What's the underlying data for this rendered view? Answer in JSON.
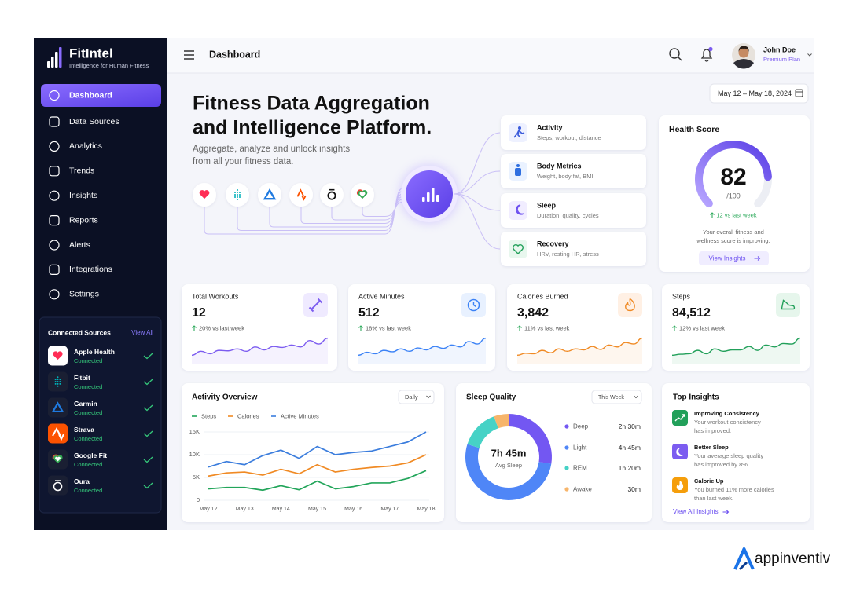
{
  "brand": {
    "name": "FitIntel",
    "tagline": "Intelligence for Human Fitness"
  },
  "nav": [
    "Dashboard",
    "Data Sources",
    "Analytics",
    "Trends",
    "Insights",
    "Reports",
    "Alerts",
    "Integrations",
    "Settings"
  ],
  "connected": {
    "title": "Connected Sources",
    "view_all": "View All",
    "sources": [
      {
        "name": "Apple Health",
        "status": "Connected"
      },
      {
        "name": "Fitbit",
        "status": "Connected"
      },
      {
        "name": "Garmin",
        "status": "Connected"
      },
      {
        "name": "Strava",
        "status": "Connected"
      },
      {
        "name": "Google Fit",
        "status": "Connected"
      },
      {
        "name": "Oura",
        "status": "Connected"
      }
    ]
  },
  "header": {
    "title": "Dashboard",
    "user": "John Doe",
    "plan": "Premium Plan"
  },
  "hero": {
    "title_line1": "Fitness Data Aggregation",
    "title_line2": "and Intelligence Platform.",
    "subtitle_line1": "Aggregate, analyze and unlock insights",
    "subtitle_line2": "from all your fitness data."
  },
  "date_range": "May 12 – May 18, 2024",
  "data_categories": [
    {
      "title": "Activity",
      "desc": "Steps, workout, distance",
      "color": "#3b5bdb",
      "tint": "#eef1ff"
    },
    {
      "title": "Body Metrics",
      "desc": "Weight, body fat, BMI",
      "color": "#2f6fe0",
      "tint": "#eaf2ff"
    },
    {
      "title": "Sleep",
      "desc": "Duration, quality, cycles",
      "color": "#6d4ff0",
      "tint": "#f1edff"
    },
    {
      "title": "Recovery",
      "desc": "HRV, resting HR, stress",
      "color": "#22a05a",
      "tint": "#e8f7ee"
    }
  ],
  "health_score": {
    "title": "Health Score",
    "value": 82,
    "max": 100,
    "max_label": "/100",
    "change": "12 vs last week",
    "note_line1": "Your overall fitness and",
    "note_line2": "wellness score is improving.",
    "link": "View Insights"
  },
  "stats": [
    {
      "title": "Total Workouts",
      "value": "12",
      "change": "20% vs last week",
      "color": "#7c5cf0",
      "tint": "#efeaff"
    },
    {
      "title": "Active Minutes",
      "value": "512",
      "change": "18% vs last week",
      "color": "#3b82f6",
      "tint": "#e8f1ff"
    },
    {
      "title": "Calories Burned",
      "value": "3,842",
      "change": "11% vs last week",
      "color": "#f08a24",
      "tint": "#fff0e4"
    },
    {
      "title": "Steps",
      "value": "84,512",
      "change": "12% vs last week",
      "color": "#22a05a",
      "tint": "#e6f6ec"
    }
  ],
  "chart_data": [
    {
      "type": "line",
      "title": "Activity Overview",
      "period": "Daily",
      "x": [
        "May 12",
        null,
        "May 13",
        null,
        "May 14",
        null,
        "May 15",
        null,
        "May 16",
        null,
        "May 17",
        null,
        "May 18"
      ],
      "series": [
        {
          "name": "Steps",
          "color": "#22a55a",
          "values": [
            2500,
            2800,
            2800,
            2200,
            3200,
            2300,
            4200,
            2500,
            3000,
            3800,
            3800,
            4800,
            6500
          ]
        },
        {
          "name": "Calories",
          "color": "#f08a24",
          "values": [
            5300,
            6000,
            6200,
            5500,
            6800,
            5800,
            7800,
            6200,
            6800,
            7200,
            7500,
            8200,
            10000
          ]
        },
        {
          "name": "Active Minutes",
          "color": "#3b7ddd",
          "values": [
            7300,
            8500,
            7800,
            9800,
            11000,
            9200,
            11800,
            10000,
            10500,
            10800,
            11800,
            12800,
            15000
          ]
        }
      ],
      "ylim": [
        0,
        15000
      ],
      "yticks": [
        0,
        {
          "value": 5000,
          "label": "5K"
        },
        {
          "value": 10000,
          "label": "10K"
        },
        {
          "value": 15000,
          "label": "15K"
        }
      ],
      "grid": true
    },
    {
      "type": "pie",
      "title": "Sleep Quality",
      "period": "This Week",
      "center_value": "7h 45m",
      "center_label": "Avg Sleep",
      "categories": [
        "Deep",
        "Light",
        "REM",
        "Awake"
      ],
      "values": [
        150,
        285,
        80,
        30
      ],
      "value_labels": [
        "2h 30m",
        "4h 45m",
        "1h 20m",
        "30m"
      ],
      "colors": [
        "#7357f2",
        "#4f86f7",
        "#46d2c6",
        "#f7b56b"
      ]
    }
  ],
  "top_insights": {
    "title": "Top Insights",
    "items": [
      {
        "title": "Improving Consistency",
        "line1": "Your workout consistency",
        "line2": "has improved.",
        "color": "#22a05a"
      },
      {
        "title": "Better Sleep",
        "line1": "Your average sleep quality",
        "line2": "has improved by 8%.",
        "color": "#7c5cf0"
      },
      {
        "title": "Calorie Up",
        "line1": "You burned 11% more calories",
        "line2": "than last week.",
        "color": "#f59e0b"
      }
    ],
    "link": "View All Insights"
  },
  "footer_brand": "appinventiv"
}
